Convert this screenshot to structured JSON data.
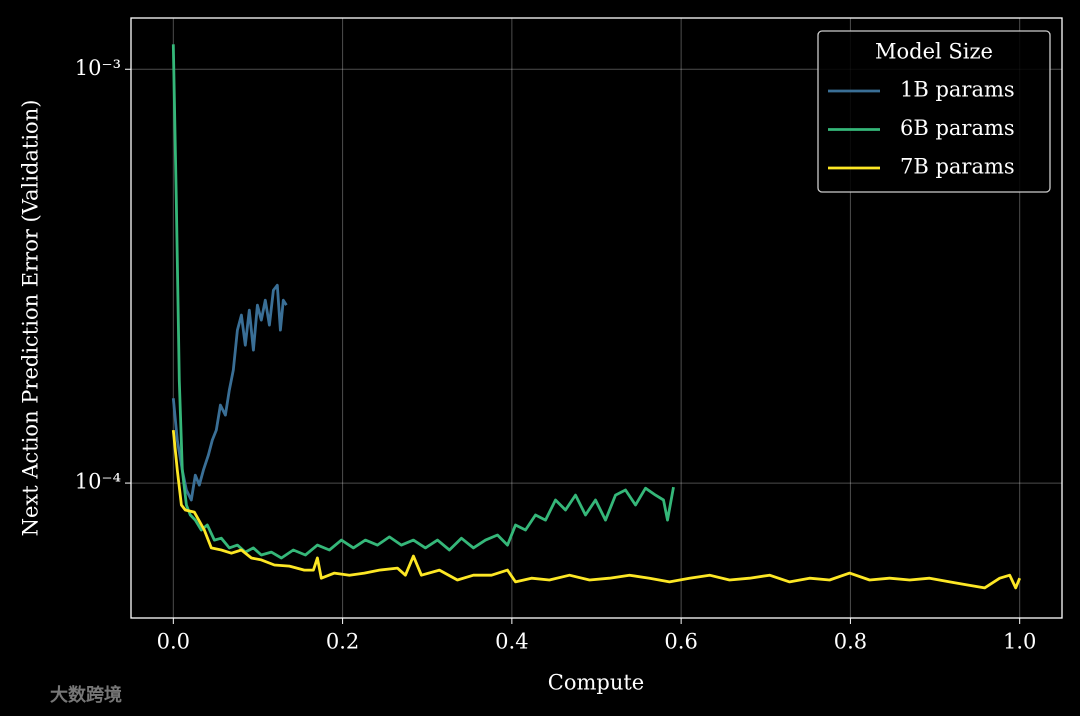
{
  "chart_data": {
    "type": "line",
    "xlabel": "Compute",
    "ylabel": "Next Action Prediction Error (Validation)",
    "yscale": "log",
    "grid": true,
    "xlim": [
      -0.05,
      1.05
    ],
    "ylim": [
      4.72e-05,
      0.00133
    ],
    "xticks": [
      {
        "value": 0,
        "label": "0.0"
      },
      0.2,
      0.4,
      0.6,
      0.8,
      {
        "value": 1,
        "label": "1.0"
      }
    ],
    "yticks": [
      {
        "value": 0.0001,
        "label": "10⁻⁴"
      },
      {
        "value": 0.001,
        "label": "10⁻³"
      }
    ],
    "legend_title": "Model Size",
    "legend_position": "upper right",
    "series": [
      {
        "name": "1B params",
        "color": "#3a6f96",
        "x": [
          0,
          0.0047,
          0.0106,
          0.0154,
          0.0213,
          0.026,
          0.0307,
          0.0355,
          0.0414,
          0.0461,
          0.0508,
          0.0556,
          0.0615,
          0.0662,
          0.0709,
          0.0757,
          0.0804,
          0.0851,
          0.0898,
          0.0946,
          0.0993,
          0.104,
          0.1087,
          0.1135,
          0.1182,
          0.1229,
          0.1265,
          0.13,
          0.1336
        ],
        "values": [
          0.0001604,
          0.000127,
          0.0001075,
          9.62e-05,
          9.1e-05,
          0.0001045,
          9.89e-05,
          0.0001075,
          0.0001169,
          0.000127,
          0.0001343,
          0.0001543,
          0.000146,
          0.0001677,
          0.0001875,
          0.0002342,
          0.0002546,
          0.0002154,
          0.0002617,
          0.0002096,
          0.0002692,
          0.0002476,
          0.0002767,
          0.0002408,
          0.0002925,
          0.0003008,
          0.0002342,
          0.0002767,
          0.0002692
        ]
      },
      {
        "name": "6B params",
        "color": "#35b779",
        "x": [
          0,
          0.0035,
          0.0071,
          0.0106,
          0.0154,
          0.0201,
          0.026,
          0.0331,
          0.0402,
          0.0485,
          0.0567,
          0.0662,
          0.0757,
          0.0851,
          0.0946,
          0.104,
          0.1158,
          0.1277,
          0.1418,
          0.156,
          0.1702,
          0.1844,
          0.1986,
          0.2128,
          0.227,
          0.2411,
          0.2553,
          0.2695,
          0.2837,
          0.2979,
          0.3121,
          0.3262,
          0.3404,
          0.3546,
          0.3688,
          0.383,
          0.3948,
          0.4043,
          0.4161,
          0.4279,
          0.4397,
          0.4515,
          0.4634,
          0.4752,
          0.487,
          0.4988,
          0.5106,
          0.5225,
          0.5343,
          0.5461,
          0.5579,
          0.5697,
          0.5792,
          0.5839,
          0.591
        ],
        "values": [
          0.001149,
          0.000483,
          0.000177,
          0.0001075,
          8.85e-05,
          8.37e-05,
          8.14e-05,
          7.7e-05,
          7.92e-05,
          7.28e-05,
          7.36e-05,
          6.97e-05,
          7.08e-05,
          6.81e-05,
          6.97e-05,
          6.7e-05,
          6.81e-05,
          6.59e-05,
          6.89e-05,
          6.7e-05,
          7.08e-05,
          6.89e-05,
          7.28e-05,
          6.97e-05,
          7.28e-05,
          7.08e-05,
          7.41e-05,
          7.08e-05,
          7.28e-05,
          6.97e-05,
          7.28e-05,
          6.89e-05,
          7.36e-05,
          6.97e-05,
          7.28e-05,
          7.49e-05,
          7.08e-05,
          7.92e-05,
          7.7e-05,
          8.37e-05,
          8.14e-05,
          9.1e-05,
          8.61e-05,
          9.35e-05,
          8.37e-05,
          9.1e-05,
          8.14e-05,
          9.35e-05,
          9.62e-05,
          8.85e-05,
          9.72e-05,
          9.35e-05,
          9.1e-05,
          8.14e-05,
          9.78e-05
        ]
      },
      {
        "name": "7B params",
        "color": "#fde725",
        "x": [
          0,
          0.0047,
          0.0095,
          0.0142,
          0.0248,
          0.0366,
          0.0449,
          0.0567,
          0.0686,
          0.0804,
          0.0922,
          0.104,
          0.1194,
          0.1371,
          0.1548,
          0.1655,
          0.1702,
          0.1749,
          0.1903,
          0.208,
          0.2258,
          0.2435,
          0.2648,
          0.2742,
          0.2837,
          0.2931,
          0.3144,
          0.3357,
          0.3546,
          0.3759,
          0.3948,
          0.4043,
          0.4232,
          0.4444,
          0.4681,
          0.4917,
          0.5154,
          0.539,
          0.5626,
          0.5863,
          0.6099,
          0.6336,
          0.6572,
          0.6809,
          0.7045,
          0.7281,
          0.7518,
          0.7754,
          0.7991,
          0.8227,
          0.8463,
          0.87,
          0.8936,
          0.9173,
          0.9385,
          0.9586,
          0.9764,
          0.9882,
          0.9953,
          1
        ],
        "values": [
          0.0001343,
          0.0001075,
          8.85e-05,
          8.61e-05,
          8.51e-05,
          7.7e-05,
          6.97e-05,
          6.89e-05,
          6.77e-05,
          6.89e-05,
          6.59e-05,
          6.52e-05,
          6.34e-05,
          6.3e-05,
          6.16e-05,
          6.16e-05,
          6.59e-05,
          5.89e-05,
          6.06e-05,
          5.99e-05,
          6.06e-05,
          6.16e-05,
          6.23e-05,
          5.99e-05,
          6.66e-05,
          5.99e-05,
          6.16e-05,
          5.83e-05,
          5.99e-05,
          5.99e-05,
          6.16e-05,
          5.77e-05,
          5.89e-05,
          5.83e-05,
          5.99e-05,
          5.83e-05,
          5.89e-05,
          5.99e-05,
          5.89e-05,
          5.77e-05,
          5.89e-05,
          5.99e-05,
          5.83e-05,
          5.89e-05,
          5.99e-05,
          5.77e-05,
          5.89e-05,
          5.83e-05,
          6.06e-05,
          5.83e-05,
          5.89e-05,
          5.83e-05,
          5.89e-05,
          5.77e-05,
          5.67e-05,
          5.58e-05,
          5.89e-05,
          5.99e-05,
          5.58e-05,
          5.89e-05
        ]
      }
    ]
  },
  "watermark": "大数跨境"
}
